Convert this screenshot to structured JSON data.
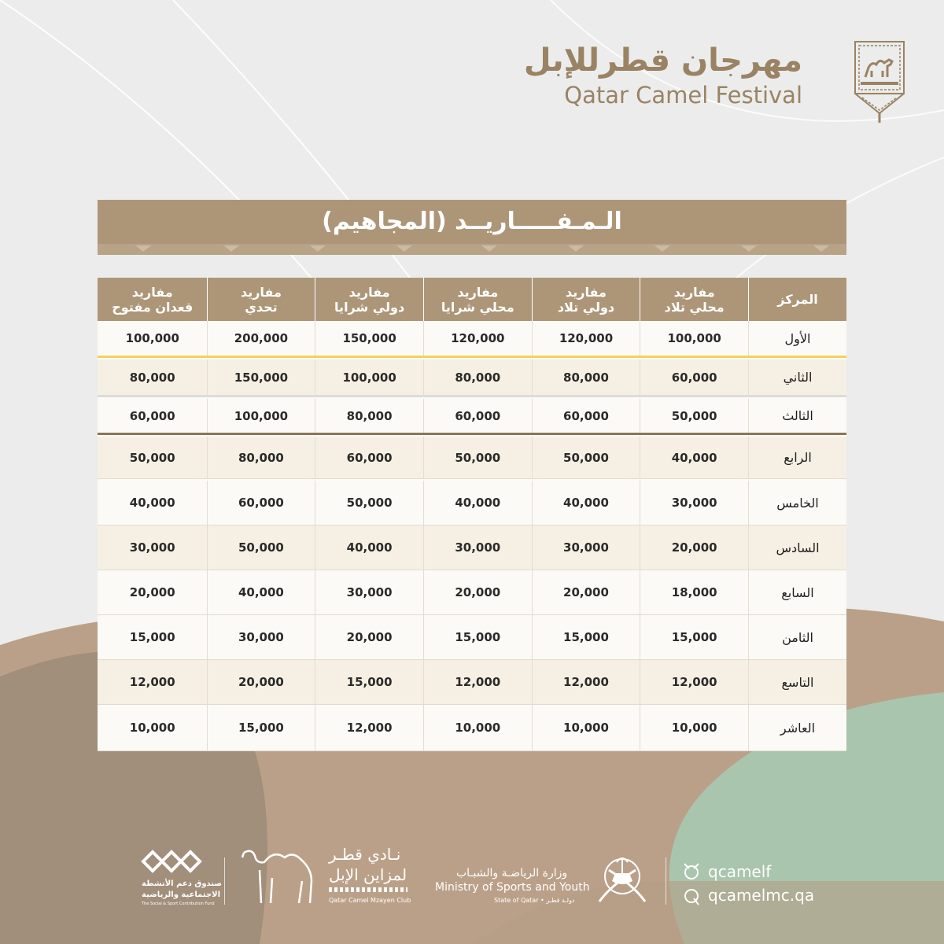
{
  "logo": {
    "arabic": "مهرجان قطرللإبل",
    "english": "Qatar Camel Festival"
  },
  "title": "الـمـفـــــاريــد (المجاهيم)",
  "table": {
    "headers": [
      {
        "l1": "المركز",
        "l2": ""
      },
      {
        "l1": "مفاريد",
        "l2": "محلي تلاد"
      },
      {
        "l1": "مفاريد",
        "l2": "دولي تلاد"
      },
      {
        "l1": "مفاريد",
        "l2": "محلي شرايا"
      },
      {
        "l1": "مفاريد",
        "l2": "دولي شرايا"
      },
      {
        "l1": "مفاريد",
        "l2": "تحدي"
      },
      {
        "l1": "مفاريد",
        "l2": "قعدان مفتوح"
      }
    ],
    "rows": [
      [
        "الأول",
        "100,000",
        "120,000",
        "120,000",
        "150,000",
        "200,000",
        "100,000"
      ],
      [
        "الثاني",
        "60,000",
        "80,000",
        "80,000",
        "100,000",
        "150,000",
        "80,000"
      ],
      [
        "الثالث",
        "50,000",
        "60,000",
        "60,000",
        "80,000",
        "100,000",
        "60,000"
      ],
      [
        "الرابع",
        "40,000",
        "50,000",
        "50,000",
        "60,000",
        "80,000",
        "50,000"
      ],
      [
        "الخامس",
        "30,000",
        "40,000",
        "40,000",
        "50,000",
        "60,000",
        "40,000"
      ],
      [
        "السادس",
        "20,000",
        "30,000",
        "30,000",
        "40,000",
        "50,000",
        "30,000"
      ],
      [
        "السابع",
        "18,000",
        "20,000",
        "20,000",
        "30,000",
        "40,000",
        "20,000"
      ],
      [
        "الثامن",
        "15,000",
        "15,000",
        "15,000",
        "20,000",
        "30,000",
        "15,000"
      ],
      [
        "التاسع",
        "12,000",
        "12,000",
        "12,000",
        "15,000",
        "20,000",
        "12,000"
      ],
      [
        "العاشر",
        "10,000",
        "10,000",
        "10,000",
        "12,000",
        "15,000",
        "10,000"
      ]
    ]
  },
  "footer": {
    "fund_ar_1": "صندوق دعم الأنشطة",
    "fund_ar_2": "الاجتماعية والرياضية",
    "fund_en": "The Social & Sport Contribution Fund",
    "club_ar_1": "نـادي قطـر",
    "club_ar_2": "لمزاين الإبل",
    "club_en": "Qatar Camel Mzayen Club",
    "ministry_ar": "وزارة الرياضـة والشبـاب",
    "ministry_en": "Ministry of Sports and Youth",
    "state_line": "State of Qatar • دولـة قطـر",
    "handle_1": "qcamelf",
    "handle_2": "qcamelmc.qa"
  },
  "colors": {
    "brand": "#ad9678",
    "logo_text": "#9a8364",
    "gold_line": "#f2d35a",
    "brown_line": "#8c7654"
  }
}
